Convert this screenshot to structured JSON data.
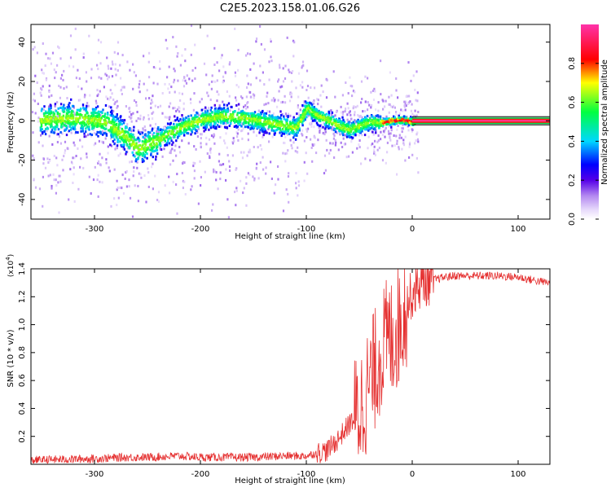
{
  "title": "C2E5.2023.158.01.06.G26",
  "chart_data": [
    {
      "type": "heatmap",
      "xlabel": "Height of straight line (km)",
      "ylabel": "Frequency (Hz)",
      "xlim": [
        -360,
        130
      ],
      "ylim": [
        -50,
        49
      ],
      "xticks": [
        -300,
        -200,
        -100,
        0,
        100
      ],
      "yticks": [
        -40,
        -20,
        0,
        20,
        40
      ],
      "colorbar": {
        "label": "Normalized spectral amplitude",
        "range": [
          0,
          1
        ],
        "ticks": [
          0.0,
          0.2,
          0.4,
          0.6,
          0.8
        ],
        "colors": [
          "#ffffff",
          "#c9a8f5",
          "#5500e8",
          "#0000ff",
          "#00d8ff",
          "#00ff40",
          "#ffff00",
          "#ff0000",
          "#ff33aa"
        ]
      },
      "ridge": {
        "x": [
          -350,
          -320,
          -290,
          -270,
          -260,
          -240,
          -220,
          -200,
          -180,
          -160,
          -140,
          -120,
          -110,
          -100,
          -90,
          -80,
          -70,
          -60,
          -50,
          -40,
          -30,
          -20,
          -10,
          0,
          130
        ],
        "y": [
          1,
          2,
          0,
          -8,
          -14,
          -9,
          -3,
          1,
          3,
          2,
          0,
          -2,
          -3,
          7,
          3,
          1,
          -2,
          -4,
          -2,
          0,
          -0.5,
          0.5,
          1,
          0,
          0
        ]
      },
      "tone": {
        "x_start": 0,
        "x_end": 130,
        "frequency": 0,
        "amplitude": 0.92
      }
    },
    {
      "type": "line",
      "xlabel": "Height of straight line (km)",
      "ylabel": "SNR (10 * v/v)",
      "y_multiplier": "(x10",
      "y_multiplier_exp": "4",
      "y_multiplier_close": ")",
      "xlim": [
        -360,
        130
      ],
      "ylim": [
        0,
        1.4
      ],
      "xticks": [
        -300,
        -200,
        -100,
        0,
        100
      ],
      "yticks": [
        0.2,
        0.4,
        0.6,
        0.8,
        1.0,
        1.2,
        1.4
      ],
      "color": "#e53030",
      "series": {
        "x": [
          -360,
          -300,
          -270,
          -250,
          -220,
          -200,
          -150,
          -120,
          -100,
          -90,
          -80,
          -70,
          -60,
          -50,
          -45,
          -40,
          -35,
          -30,
          -25,
          -20,
          -15,
          -10,
          -5,
          0,
          5,
          10,
          20,
          30,
          40,
          60,
          80,
          100,
          120,
          130
        ],
        "y": [
          0.03,
          0.04,
          0.05,
          0.05,
          0.06,
          0.05,
          0.05,
          0.06,
          0.06,
          0.08,
          0.1,
          0.18,
          0.28,
          0.38,
          0.48,
          0.58,
          0.68,
          0.8,
          0.88,
          0.9,
          0.95,
          1.05,
          1.15,
          1.22,
          1.27,
          1.3,
          1.32,
          1.34,
          1.35,
          1.35,
          1.35,
          1.34,
          1.31,
          1.3
        ]
      }
    }
  ]
}
